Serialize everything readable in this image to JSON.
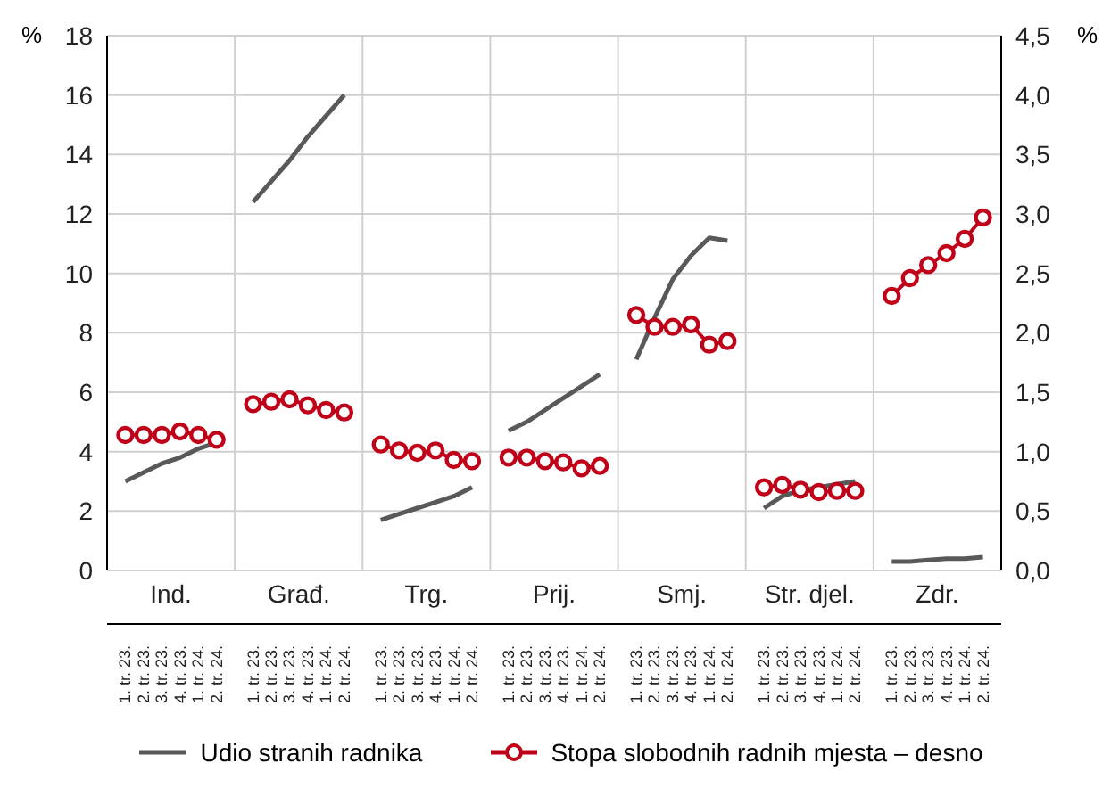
{
  "chart_data": {
    "type": "line",
    "ylabel": "%",
    "y2label": "%",
    "categories": [
      "1. tr. 23.",
      "2. tr. 23.",
      "3. tr. 23.",
      "4. tr. 23.",
      "1. tr. 24.",
      "2. tr. 24.",
      "1. tr. 23.",
      "2. tr. 23.",
      "3. tr. 23.",
      "4. tr. 23.",
      "1. tr. 24.",
      "2. tr. 24.",
      "1. tr. 23.",
      "2. tr. 23.",
      "3. tr. 23.",
      "4. tr. 23.",
      "1. tr. 24.",
      "2. tr. 24.",
      "1. tr. 23.",
      "2. tr. 23.",
      "3. tr. 23.",
      "4. tr. 23.",
      "1. tr. 24.",
      "2. tr. 24.",
      "1. tr. 23.",
      "2. tr. 23.",
      "3. tr. 23.",
      "4. tr. 23.",
      "1. tr. 24.",
      "2. tr. 24.",
      "1. tr. 23.",
      "2. tr. 23.",
      "3. tr. 23.",
      "4. tr. 23.",
      "1. tr. 24.",
      "2. tr. 24.",
      "1. tr. 23.",
      "2. tr. 23.",
      "3. tr. 23.",
      "4. tr. 23.",
      "1. tr. 24.",
      "2. tr. 24."
    ],
    "annotations": [
      "Ind.",
      "Građ.",
      "Trg.",
      "Prij.",
      "Smj.",
      "Str. djel.",
      "Zdr."
    ],
    "series": [
      {
        "name": "Udio stranih radnika",
        "color": "#595959",
        "marker": "none",
        "values": [
          3.0,
          3.3,
          3.6,
          3.8,
          4.1,
          4.3,
          12.4,
          13.1,
          13.8,
          14.6,
          15.3,
          16.0,
          1.7,
          1.9,
          2.1,
          2.3,
          2.5,
          2.8,
          4.7,
          5.0,
          5.4,
          5.8,
          6.2,
          6.6,
          7.1,
          8.5,
          9.8,
          10.6,
          11.2,
          11.1,
          2.1,
          2.5,
          2.7,
          2.8,
          2.9,
          3.0,
          0.3,
          0.3,
          0.35,
          0.4,
          0.4,
          0.45
        ]
      },
      {
        "name": "Stopa slobodnih radnih mjesta – desno",
        "color": "#c00018",
        "marker": "circle",
        "axis": "y2",
        "values": [
          1.14,
          1.14,
          1.14,
          1.17,
          1.14,
          1.1,
          1.4,
          1.42,
          1.44,
          1.39,
          1.35,
          1.33,
          1.06,
          1.01,
          0.99,
          1.01,
          0.93,
          0.92,
          0.95,
          0.95,
          0.92,
          0.91,
          0.86,
          0.88,
          2.15,
          2.05,
          2.05,
          2.07,
          1.9,
          1.93,
          0.7,
          0.72,
          0.68,
          0.66,
          0.67,
          0.67,
          2.31,
          2.46,
          2.57,
          2.67,
          2.79,
          2.97
        ]
      }
    ],
    "ylim": [
      0,
      18
    ],
    "yticks": [
      0,
      2,
      4,
      6,
      8,
      10,
      12,
      14,
      16,
      18
    ],
    "y2lim": [
      0,
      4.5
    ],
    "y2ticks": [
      {
        "value": 0,
        "label": "0,0"
      },
      {
        "value": 0.5,
        "label": "0,5"
      },
      {
        "value": 1,
        "label": "1,0"
      },
      {
        "value": 1.5,
        "label": "1,5"
      },
      {
        "value": 2,
        "label": "2,0"
      },
      {
        "value": 2.5,
        "label": "2,5"
      },
      {
        "value": 3,
        "label": "3,0"
      },
      {
        "value": 3.5,
        "label": "3,5"
      },
      {
        "value": 4,
        "label": "4,0"
      },
      {
        "value": 4.5,
        "label": "4,5"
      }
    ],
    "grid": true,
    "legend": "bottom"
  }
}
